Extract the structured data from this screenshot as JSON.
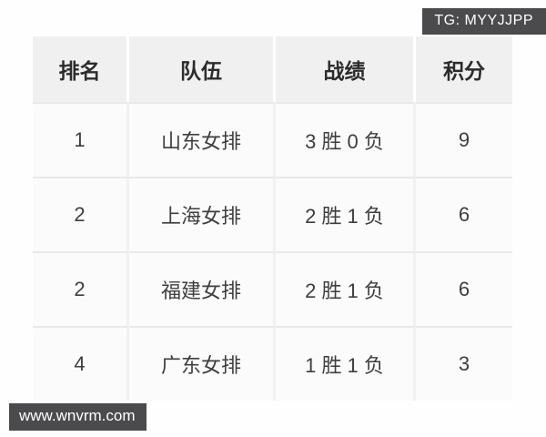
{
  "watermarks": {
    "top_right": "TG: MYYJJPP",
    "bottom_left": "www.wnvrm.com"
  },
  "colors": {
    "badge_background": "#4b4b4d",
    "badge_text": "#ffffff",
    "header_background": "#f0f0f0",
    "row_background": "#fbfbfb",
    "separator": "#e9e9e9",
    "header_text": "#2c2c2c",
    "cell_text": "#3e3e3e"
  },
  "chart_data": {
    "type": "table",
    "columns": [
      "排名",
      "队伍",
      "战绩",
      "积分"
    ],
    "rows": [
      [
        "1",
        "山东女排",
        "3 胜 0 负",
        "9"
      ],
      [
        "2",
        "上海女排",
        "2 胜 1 负",
        "6"
      ],
      [
        "2",
        "福建女排",
        "2 胜 1 负",
        "6"
      ],
      [
        "4",
        "广东女排",
        "1 胜 1 负",
        "3"
      ]
    ]
  }
}
